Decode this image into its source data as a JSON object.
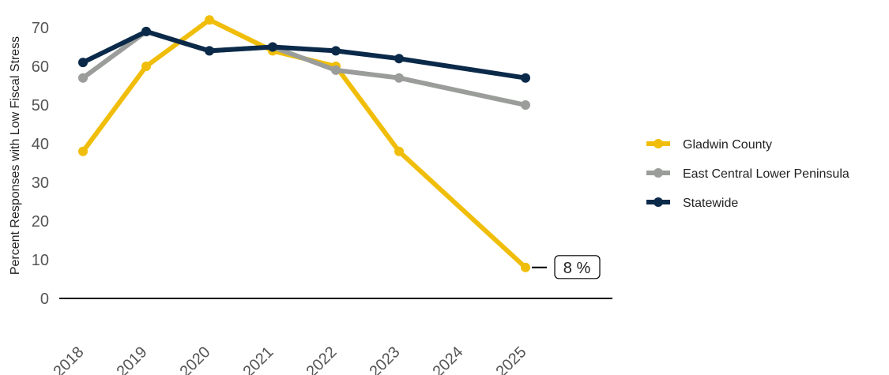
{
  "chart_data": {
    "type": "line",
    "xlabel": "",
    "ylabel": "Percent Responses with Low Fiscal Stress",
    "ylim": [
      0,
      75
    ],
    "yticks": [
      0,
      10,
      20,
      30,
      40,
      50,
      60,
      70
    ],
    "categories": [
      "2018",
      "2019",
      "2020",
      "2021",
      "2022",
      "2023",
      "2024",
      "2025"
    ],
    "grid": false,
    "legend_position": "right",
    "series": [
      {
        "name": "Gladwin County",
        "color": "#f0be0a",
        "values": [
          38,
          60,
          72,
          64,
          60,
          38,
          null,
          8
        ]
      },
      {
        "name": "East Central Lower Peninsula",
        "color": "#9a9d9a",
        "values": [
          57,
          69,
          64,
          65,
          59,
          57,
          null,
          50
        ]
      },
      {
        "name": "Statewide",
        "color": "#0b2a4a",
        "values": [
          61,
          69,
          64,
          65,
          64,
          62,
          null,
          57
        ]
      }
    ],
    "annotation": {
      "series": "Gladwin County",
      "category": "2025",
      "text": "8 %"
    }
  }
}
